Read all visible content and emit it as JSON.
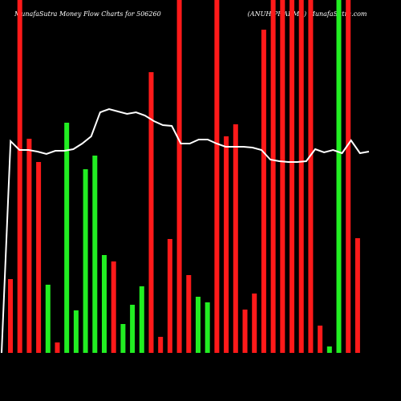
{
  "header": {
    "title": "MunafaSutra  Money Flow  Charts for 506260",
    "company": "(ANUH PHARMA) MunafaSutra.com"
  },
  "chart_data": {
    "type": "bar",
    "title": "MunafaSutra  Money Flow  Charts for 506260 (ANUH PHARMA) MunafaSutra.com",
    "colors": {
      "up": "#22ee22",
      "down": "#ff1a1a",
      "line": "#ffffff",
      "background": "#000000"
    },
    "x_labels": [
      "",
      "",
      "",
      "",
      "",
      "",
      "",
      "",
      "",
      "",
      "",
      "",
      "",
      "",
      "",
      "",
      "",
      "",
      "",
      "",
      "",
      "",
      "",
      "",
      "",
      "",
      "",
      "",
      "",
      "",
      "",
      "",
      "",
      "",
      "",
      "",
      "",
      "",
      "",
      "",
      "",
      "",
      "",
      "",
      "",
      "",
      "",
      "",
      "",
      "",
      "",
      "",
      "",
      "",
      "",
      "",
      "",
      "",
      "",
      ""
    ],
    "bars": [
      {
        "dir": "down",
        "value": 92
      },
      {
        "dir": "down",
        "value": 440
      },
      {
        "dir": "down",
        "value": 267
      },
      {
        "dir": "down",
        "value": 238
      },
      {
        "dir": "up",
        "value": 85
      },
      {
        "dir": "down",
        "value": 13
      },
      {
        "dir": "up",
        "value": 287
      },
      {
        "dir": "up",
        "value": 53
      },
      {
        "dir": "up",
        "value": 229
      },
      {
        "dir": "up",
        "value": 246
      },
      {
        "dir": "up",
        "value": 122
      },
      {
        "dir": "down",
        "value": 114
      },
      {
        "dir": "up",
        "value": 36
      },
      {
        "dir": "up",
        "value": 60
      },
      {
        "dir": "up",
        "value": 83
      },
      {
        "dir": "down",
        "value": 350
      },
      {
        "dir": "down",
        "value": 20
      },
      {
        "dir": "down",
        "value": 142
      },
      {
        "dir": "down",
        "value": 440
      },
      {
        "dir": "down",
        "value": 97
      },
      {
        "dir": "up",
        "value": 70
      },
      {
        "dir": "up",
        "value": 63
      },
      {
        "dir": "down",
        "value": 440
      },
      {
        "dir": "down",
        "value": 270
      },
      {
        "dir": "down",
        "value": 285
      },
      {
        "dir": "down",
        "value": 54
      },
      {
        "dir": "down",
        "value": 74
      },
      {
        "dir": "down",
        "value": 403
      },
      {
        "dir": "down",
        "value": 440
      },
      {
        "dir": "down",
        "value": 440
      },
      {
        "dir": "down",
        "value": 440
      },
      {
        "dir": "down",
        "value": 440
      },
      {
        "dir": "down",
        "value": 440
      },
      {
        "dir": "down",
        "value": 34
      },
      {
        "dir": "up",
        "value": 8
      },
      {
        "dir": "up",
        "value": 440
      },
      {
        "dir": "down",
        "value": 440
      },
      {
        "dir": "down",
        "value": 143
      }
    ],
    "line": [
      0,
      264,
      253,
      253,
      251,
      248,
      252,
      252,
      254,
      261,
      270,
      300,
      304,
      301,
      298,
      300,
      296,
      289,
      284,
      283,
      261,
      261,
      266,
      266,
      261,
      257,
      257,
      257,
      256,
      253,
      241,
      239,
      238,
      238,
      239,
      254,
      250,
      253,
      249,
      265,
      249,
      251
    ]
  }
}
